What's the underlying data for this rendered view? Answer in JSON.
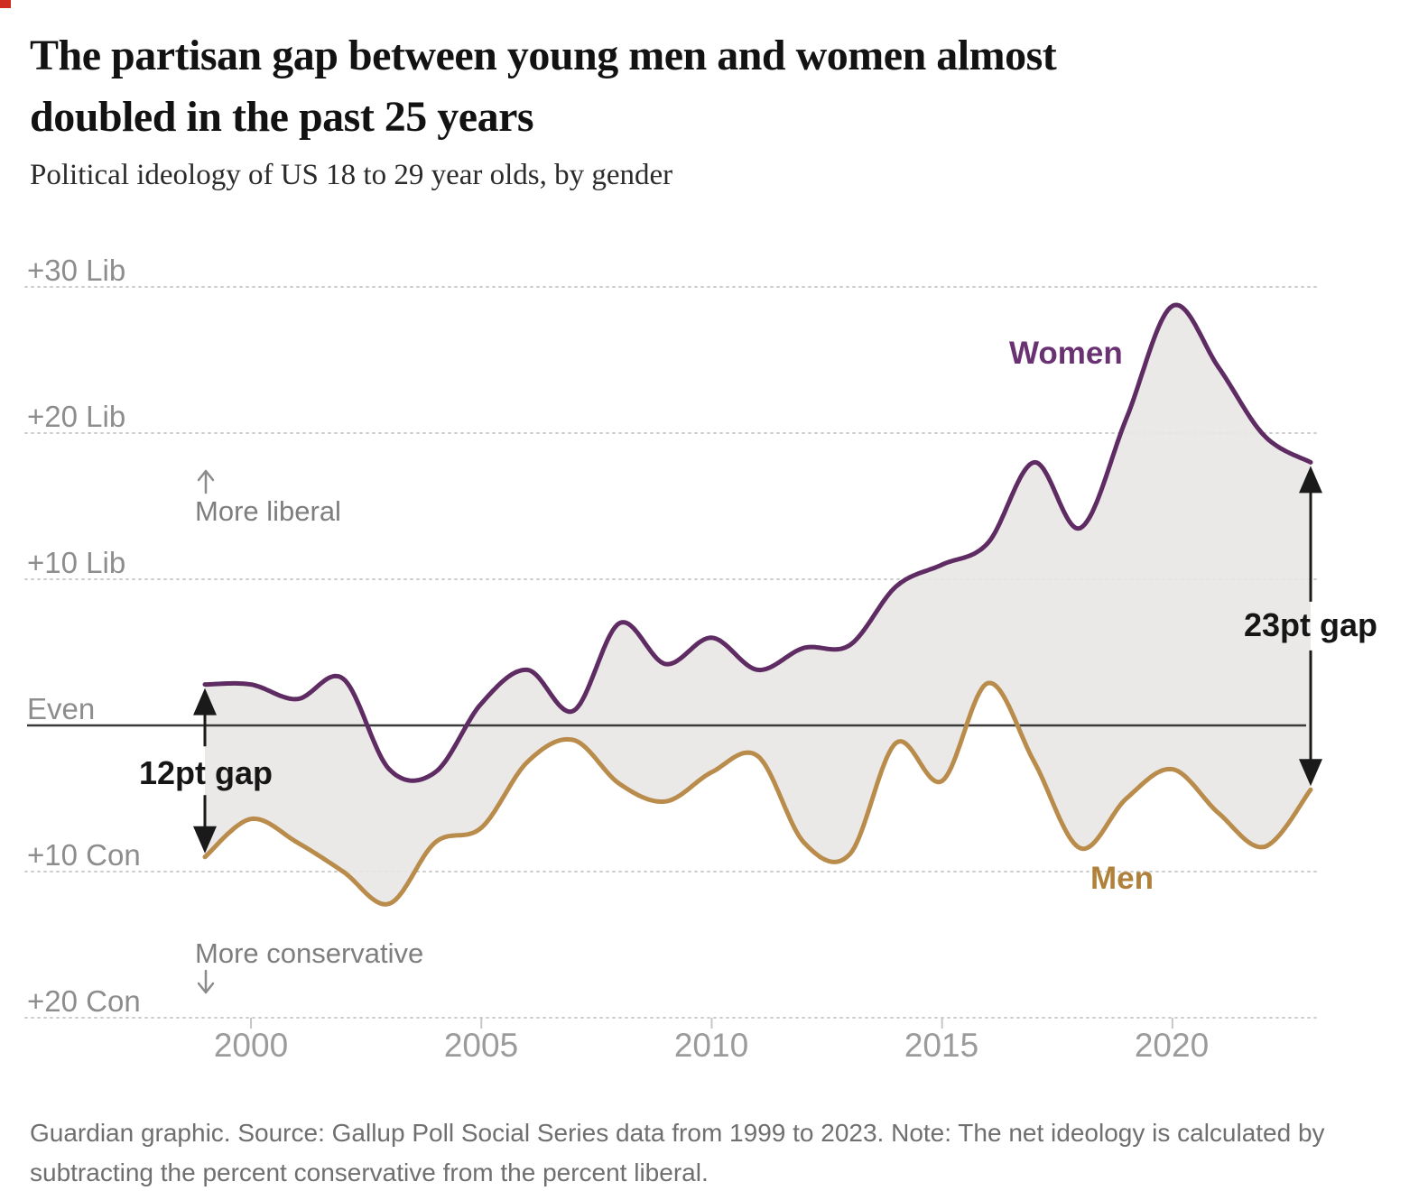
{
  "header": {
    "title": "The partisan gap between young men and women almost doubled in the past 25 years",
    "title_lines": [
      "The partisan gap between young men and women almost",
      "doubled in the past 25 years"
    ],
    "subtitle": "Political ideology of US 18 to 29 year olds, by gender"
  },
  "chart_data": {
    "type": "line",
    "title": "The partisan gap between young men and women almost doubled in the past 25 years",
    "subtitle": "Political ideology of US 18 to 29 year olds, by gender",
    "x": [
      1999,
      2000,
      2001,
      2002,
      2003,
      2004,
      2005,
      2006,
      2007,
      2008,
      2009,
      2010,
      2011,
      2012,
      2013,
      2014,
      2015,
      2016,
      2017,
      2018,
      2019,
      2020,
      2021,
      2022,
      2023
    ],
    "series": [
      {
        "name": "Women",
        "color": "#5e2b63",
        "label_color": "#6a3273",
        "values": [
          2.8,
          2.8,
          1.8,
          3.2,
          -3.0,
          -3.2,
          1.5,
          3.8,
          1.0,
          7.0,
          4.2,
          6.0,
          3.8,
          5.3,
          5.5,
          9.5,
          11.0,
          12.5,
          18.0,
          13.5,
          21.0,
          28.7,
          24.5,
          19.8,
          18.0
        ]
      },
      {
        "name": "Men",
        "color": "#b98c4c",
        "label_color": "#b0813a",
        "values": [
          -9.0,
          -6.4,
          -8.0,
          -10.0,
          -12.2,
          -8.0,
          -7.0,
          -2.5,
          -1.0,
          -4.0,
          -5.2,
          -3.2,
          -2.1,
          -8.0,
          -8.8,
          -1.2,
          -3.8,
          2.9,
          -2.5,
          -8.4,
          -5.0,
          -3.0,
          -6.0,
          -8.3,
          -4.4
        ]
      }
    ],
    "band_fill": "#e8e7e4",
    "xlim": [
      1999,
      2023
    ],
    "ylim": [
      -22,
      32
    ],
    "grid": "dotted horizontal gridlines",
    "legend_position": "labels next to lines",
    "y_axis": {
      "ticks": [
        {
          "value": 30,
          "label": "+30 Lib"
        },
        {
          "value": 20,
          "label": "+20 Lib"
        },
        {
          "value": 10,
          "label": "+10 Lib"
        },
        {
          "value": 0,
          "label": "Even"
        },
        {
          "value": -10,
          "label": "+10 Con"
        },
        {
          "value": -20,
          "label": "+20 Con"
        }
      ],
      "zero_line_color": "#3a3a3a",
      "gridline_color": "#cdcdcd"
    },
    "x_axis": {
      "ticks": [
        {
          "value": 2000,
          "label": "2000"
        },
        {
          "value": 2005,
          "label": "2005"
        },
        {
          "value": 2010,
          "label": "2010"
        },
        {
          "value": 2015,
          "label": "2015"
        },
        {
          "value": 2020,
          "label": "2020"
        }
      ]
    },
    "annotations": {
      "direction_up": "More liberal",
      "direction_down": "More conservative",
      "gap_start": {
        "label": "12pt gap",
        "x": 1999,
        "from": 2.8,
        "to": -9.0
      },
      "gap_end": {
        "label": "23pt gap",
        "x": 2023,
        "from": 18.0,
        "to": -4.4
      },
      "arrow_color": "#1a1a1a"
    }
  },
  "footer": {
    "text": "Guardian graphic. Source: Gallup Poll Social Series data from 1999 to 2023. Note: The net ideology is calculated by subtracting the percent conservative from the percent liberal.",
    "lines": [
      "Guardian graphic. Source: Gallup Poll Social Series data from 1999 to 2023. Note: The net ideology is calculated by",
      "subtracting the percent conservative from the percent liberal."
    ]
  }
}
